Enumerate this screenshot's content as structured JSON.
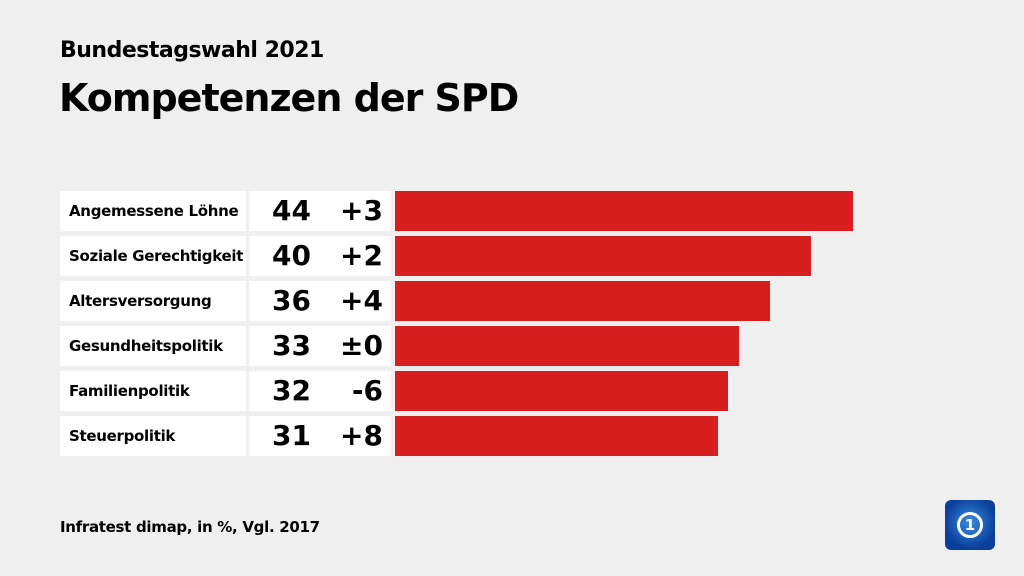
{
  "chart_data": {
    "type": "bar",
    "subtitle": "Bundestagswahl 2021",
    "title": "Kompetenzen der SPD",
    "categories": [
      "Angemessene Löhne",
      "Soziale Gerechtigkeit",
      "Altersversorgung",
      "Gesundheitspolitik",
      "Familienpolitik",
      "Steuerpolitik"
    ],
    "values": [
      44,
      40,
      36,
      33,
      32,
      31
    ],
    "changes": [
      "+3",
      "+2",
      "+4",
      "±0",
      "-6",
      "+8"
    ],
    "bar_color": "#d81f1f",
    "source": "Infratest dimap, in %, Vgl. 2017"
  },
  "logo": {
    "name": "tagesschau-logo",
    "text": "1"
  }
}
